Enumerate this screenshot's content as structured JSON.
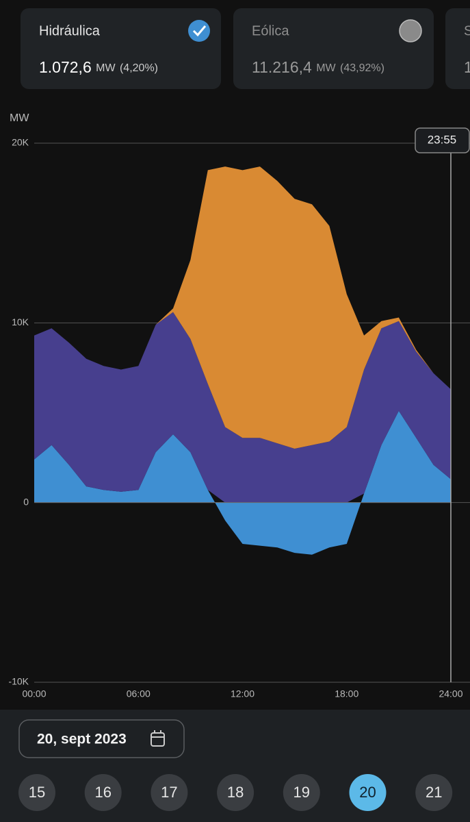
{
  "cards": [
    {
      "name": "Hidráulica",
      "value": "1.072,6",
      "unit": "MW",
      "share": "(4,20%)"
    },
    {
      "name": "Eólica",
      "value": "11.216,4",
      "unit": "MW",
      "share": "(43,92%)"
    },
    {
      "name": "S",
      "value": "1"
    }
  ],
  "chart_data": {
    "type": "area",
    "stacked": true,
    "y_label": "MW",
    "x": [
      0,
      1,
      2,
      3,
      4,
      5,
      6,
      7,
      8,
      9,
      10,
      11,
      12,
      13,
      14,
      15,
      16,
      17,
      18,
      19,
      20,
      21,
      22,
      23,
      24
    ],
    "xlim": [
      0,
      24
    ],
    "xticks": [
      {
        "value": 0,
        "label": "00:00"
      },
      {
        "value": 6,
        "label": "06:00"
      },
      {
        "value": 12,
        "label": "12:00"
      },
      {
        "value": 18,
        "label": "18:00"
      },
      {
        "value": 24,
        "label": "24:00"
      }
    ],
    "ylim": [
      -10000,
      20000
    ],
    "yticks": [
      {
        "value": -10000,
        "label": "-10K"
      },
      0,
      {
        "value": 10000,
        "label": "10K"
      },
      {
        "value": 20000,
        "label": "20K"
      }
    ],
    "grid": true,
    "series": [
      {
        "name": "Hidráulica",
        "color": "#3f8fd2",
        "values": [
          2400,
          3200,
          2100,
          900,
          700,
          600,
          700,
          2800,
          3800,
          2800,
          700,
          -1000,
          -2300,
          -2400,
          -2500,
          -2800,
          -2900,
          -2500,
          -2300,
          500,
          3200,
          5100,
          3600,
          2100,
          1300
        ]
      },
      {
        "color": "#473f8e",
        "values": [
          6900,
          6500,
          6800,
          7100,
          6900,
          6800,
          6900,
          7100,
          6800,
          6300,
          5900,
          4200,
          3600,
          3600,
          3300,
          3000,
          3200,
          3400,
          4200,
          6900,
          6500,
          5000,
          4800,
          5100,
          5000
        ]
      },
      {
        "color": "#d98a33",
        "values": [
          0,
          0,
          0,
          0,
          0,
          0,
          0,
          0,
          200,
          4400,
          11900,
          14500,
          14900,
          15100,
          14600,
          13900,
          13400,
          12000,
          7400,
          1900,
          400,
          200,
          100,
          0,
          0
        ]
      }
    ],
    "cursor_label": "23:55"
  },
  "date_picker": {
    "label": "20, sept 2023"
  },
  "days": {
    "labels": [
      "15",
      "16",
      "17",
      "18",
      "19",
      "20",
      "21"
    ],
    "selected": 5
  }
}
